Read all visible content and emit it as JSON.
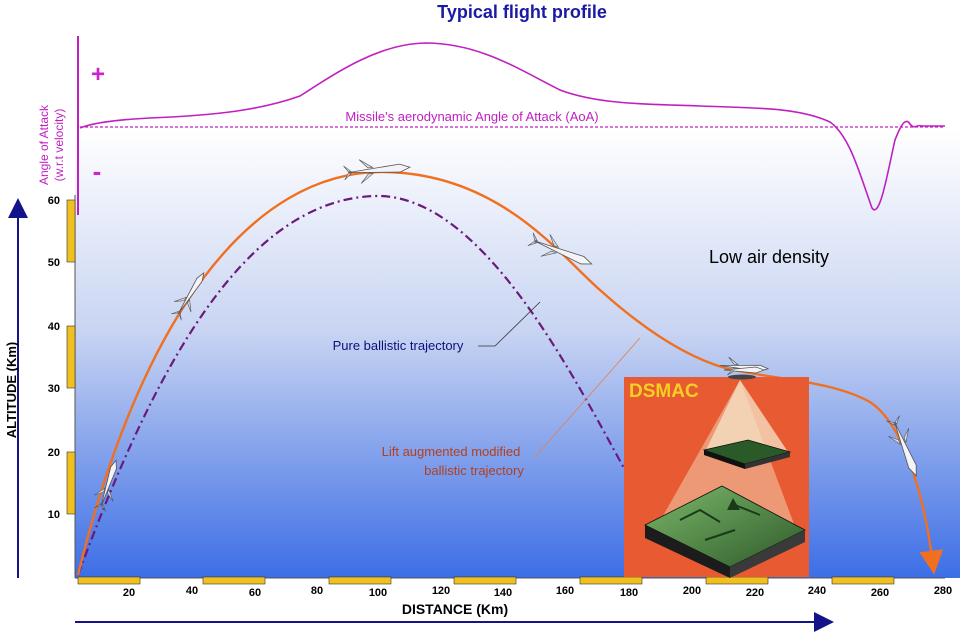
{
  "title": "Typical flight profile",
  "aoa": {
    "label": "Missile's aerodynamic Angle of Attack (AoA)",
    "axis_label_line1": "Angle of Attack",
    "axis_label_line2": "(w.r.t velocity)",
    "plus": "+",
    "minus": "-"
  },
  "axes": {
    "ylabel": "ALTITUDE (Km)",
    "xlabel": "DISTANCE (Km)",
    "y_ticks": [
      "10",
      "20",
      "30",
      "40",
      "50",
      "60"
    ],
    "x_ticks": [
      "20",
      "40",
      "60",
      "80",
      "100",
      "120",
      "140",
      "160",
      "180",
      "200",
      "220",
      "240",
      "260",
      "280"
    ]
  },
  "annotations": {
    "low_air": "Low air density",
    "ballistic": "Pure ballistic trajectory",
    "lift_line1": "Lift augmented modified",
    "lift_line2": "ballistic trajectory",
    "dsmac": "DSMAC"
  },
  "colors": {
    "title": "#1a1aa6",
    "aoa": "#c020c0",
    "lift_trajectory": "#f07020",
    "ballistic_trajectory": "#6a1a7a",
    "lift_label": "#b04020",
    "ballistic_label": "#10107a",
    "axis_marker": "#f0c020",
    "dsmac_bg": "#e85a32",
    "dsmac_text": "#f5d020"
  }
}
